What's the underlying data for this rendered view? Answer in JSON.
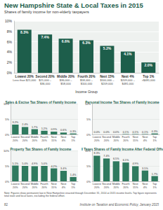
{
  "header": {
    "title": "New Hampshire State & Local Taxes in 2015",
    "subtitle": "Shares of family income for non-elderly taxpayers"
  },
  "chart_data": [
    {
      "type": "bar",
      "categories": [
        "Lowest 20%",
        "Second 20%",
        "Middle 20%",
        "Fourth 20%",
        "Next 15%",
        "Next 4%",
        "Top 1%"
      ],
      "income_ranges": [
        "Less than $21,000",
        "$21,000 – $36,000",
        "$36,000 – $58,000",
        "$58,000 – $100,000",
        "$100,000 – $209,000",
        "$209,000 – $481,000",
        ">$481,000"
      ],
      "x_label": "Income Group",
      "values": [
        8.3,
        7.4,
        6.6,
        6.3,
        5.2,
        4.1,
        2.0
      ],
      "value_labels": [
        "8.3%",
        "7.4%",
        "6.6%",
        "6.3%",
        "5.2%",
        "4.1%",
        "2.0%"
      ],
      "color": "#1d5e4b",
      "ylim": [
        0,
        10
      ],
      "yticks": [
        {
          "value": 0,
          "label": "0%"
        },
        {
          "value": 2,
          "label": "2%"
        },
        {
          "value": 4,
          "label": "4%"
        },
        {
          "value": 6,
          "label": "6%"
        },
        {
          "value": 8,
          "label": "8%"
        },
        {
          "value": 10,
          "label": "10%"
        }
      ],
      "grid": true,
      "data_labels": true
    },
    {
      "type": "bar",
      "title": "Sales & Excise Tax Shares of Family Income",
      "categories": [
        "Lowest 20%",
        "Second 20%",
        "Middle 20%",
        "Fourth 20%",
        "Next 15%",
        "Next 4%",
        "Top 1%"
      ],
      "values": [
        3.2,
        2.4,
        1.7,
        1.2,
        0.9,
        0.6,
        0.3
      ],
      "value_labels": [
        "3.2%",
        "2.4%",
        "1.7%",
        "1.2%",
        "0.9%",
        "0.6%",
        "0.3%"
      ],
      "color": "#2f7a5f",
      "ylim": [
        0,
        10
      ],
      "yticks": [
        {
          "value": 0,
          "label": "0%"
        },
        {
          "value": 5,
          "label": "5%"
        },
        {
          "value": 10,
          "label": "10%"
        }
      ],
      "grid": true,
      "data_labels": true
    },
    {
      "type": "bar",
      "title": "Personal Income Tax Shares of Family Income",
      "categories": [
        "Lowest 20%",
        "Second 20%",
        "Middle 20%",
        "Fourth 20%",
        "Next 15%",
        "Next 4%",
        "Top 1%"
      ],
      "values": [
        0.0,
        0.0,
        0.0,
        0.1,
        0.1,
        0.1,
        0.3
      ],
      "value_labels": [
        "0.0%",
        "0.0%",
        "0.0%",
        "0.1%",
        "0.1%",
        "0.1%",
        "0.3%"
      ],
      "color": "#2f7a5f",
      "ylim": [
        0,
        10
      ],
      "yticks": [
        {
          "value": 0,
          "label": "0%"
        },
        {
          "value": 5,
          "label": "5%"
        },
        {
          "value": 10,
          "label": "10%"
        }
      ],
      "grid": true,
      "data_labels": true
    },
    {
      "type": "bar",
      "title": "Property Tax Shares of Family Income",
      "categories": [
        "Lowest 20%",
        "Second 20%",
        "Middle 20%",
        "Fourth 20%",
        "Next 15%",
        "Next 4%",
        "Top 1%"
      ],
      "values": [
        5.1,
        5.0,
        4.9,
        5.0,
        4.2,
        3.4,
        1.4
      ],
      "value_labels": [
        "5.1%",
        "5.0%",
        "4.9%",
        "5.0%",
        "4.2%",
        "3.4%",
        "1.4%"
      ],
      "color": "#2f7a5f",
      "ylim": [
        0,
        10
      ],
      "yticks": [
        {
          "value": 0,
          "label": "0%"
        },
        {
          "value": 5,
          "label": "5%"
        },
        {
          "value": 10,
          "label": "10%"
        }
      ],
      "grid": true,
      "data_labels": true
    },
    {
      "type": "bar",
      "title": "All Taxes Shares of Family Income After Federal Offset",
      "categories": [
        "Lowest 20%",
        "Second 20%",
        "Middle 20%",
        "Fourth 20%",
        "Next 15%",
        "Next 4%",
        "Top 1%"
      ],
      "values": [
        8.3,
        7.4,
        6.5,
        6.1,
        4.9,
        3.5,
        1.7
      ],
      "value_labels": [
        "8.3%",
        "7.4%",
        "6.5%",
        "6.1%",
        "4.9%",
        "3.5%",
        "1.7%"
      ],
      "color": "#2f7a5f",
      "ylim": [
        0,
        10
      ],
      "yticks": [
        {
          "value": 0,
          "label": "0%"
        },
        {
          "value": 5,
          "label": "5%"
        },
        {
          "value": 10,
          "label": "10%"
        }
      ],
      "grid": true,
      "data_labels": true
    }
  ],
  "note": "Note: Figures show permanent law in New Hampshire enacted through December 31, 2014 at 2015 income levels. Top figure represents total state and local taxes, excluding the federal offset.",
  "footer": {
    "page_number": "82",
    "source": "Institute on Taxation and Economic Policy, January 2015"
  }
}
